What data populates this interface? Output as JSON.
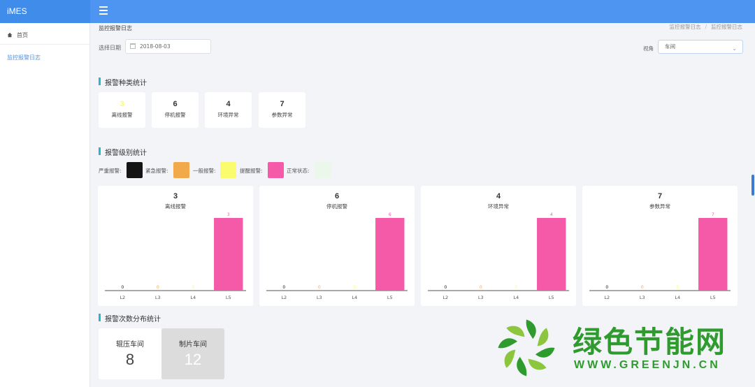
{
  "app": {
    "brand": "iMES"
  },
  "sidebar": {
    "items": [
      {
        "label": "首页"
      },
      {
        "label": "监控报警日志"
      }
    ]
  },
  "breadcrumb": {
    "current": "监控报警日志",
    "trail": [
      "监控报警日志",
      "监控报警日志"
    ]
  },
  "filters": {
    "date_label": "选择日期",
    "date_value": "2018-08-03",
    "view_label": "视角",
    "view_value": "车间"
  },
  "sections": {
    "kinds": "报警种类统计",
    "levels": "报警级别统计",
    "distribution": "报警次数分布统计"
  },
  "alarm_kinds": [
    {
      "count": "3",
      "label": "离线报警"
    },
    {
      "count": "6",
      "label": "停机报警"
    },
    {
      "count": "4",
      "label": "环境异常"
    },
    {
      "count": "7",
      "label": "参数异常"
    }
  ],
  "levels": [
    {
      "label": "严重报警:",
      "color": "#141414"
    },
    {
      "label": "紧急报警:",
      "color": "#f2a94b"
    },
    {
      "label": "一般报警:",
      "color": "#fbfb6e"
    },
    {
      "label": "提醒报警:",
      "color": "#f45aa8"
    },
    {
      "label": "正常状态:",
      "color": "#eaf7ea"
    }
  ],
  "chart_data": [
    {
      "type": "bar",
      "total": "3",
      "title": "离线报警",
      "categories": [
        "L2",
        "L3",
        "L4",
        "L5"
      ],
      "values": [
        0,
        0,
        0,
        3
      ],
      "colors": [
        "#141414",
        "#f2a94b",
        "#fbfb6e",
        "#f45aa8"
      ]
    },
    {
      "type": "bar",
      "total": "6",
      "title": "停机报警",
      "categories": [
        "L2",
        "L3",
        "L4",
        "L5"
      ],
      "values": [
        0,
        0,
        0,
        6
      ],
      "colors": [
        "#141414",
        "#f2a94b",
        "#fbfb6e",
        "#f45aa8"
      ]
    },
    {
      "type": "bar",
      "total": "4",
      "title": "环境异常",
      "categories": [
        "L2",
        "L3",
        "L4",
        "L5"
      ],
      "values": [
        0,
        0,
        0,
        4
      ],
      "colors": [
        "#141414",
        "#f2a94b",
        "#fbfb6e",
        "#f45aa8"
      ]
    },
    {
      "type": "bar",
      "total": "7",
      "title": "参数异常",
      "categories": [
        "L2",
        "L3",
        "L4",
        "L5"
      ],
      "values": [
        0,
        0,
        0,
        7
      ],
      "colors": [
        "#141414",
        "#f2a94b",
        "#fbfb6e",
        "#f45aa8"
      ]
    }
  ],
  "workshops": [
    {
      "name": "辊压车间",
      "count": "8"
    },
    {
      "name": "制片车间",
      "count": "12"
    }
  ],
  "watermark": {
    "title": "绿色节能网",
    "url": "WWW.GREENJN.CN"
  },
  "colors": {
    "accent": "#4d95f0",
    "section_marker": "#29b6c8"
  }
}
